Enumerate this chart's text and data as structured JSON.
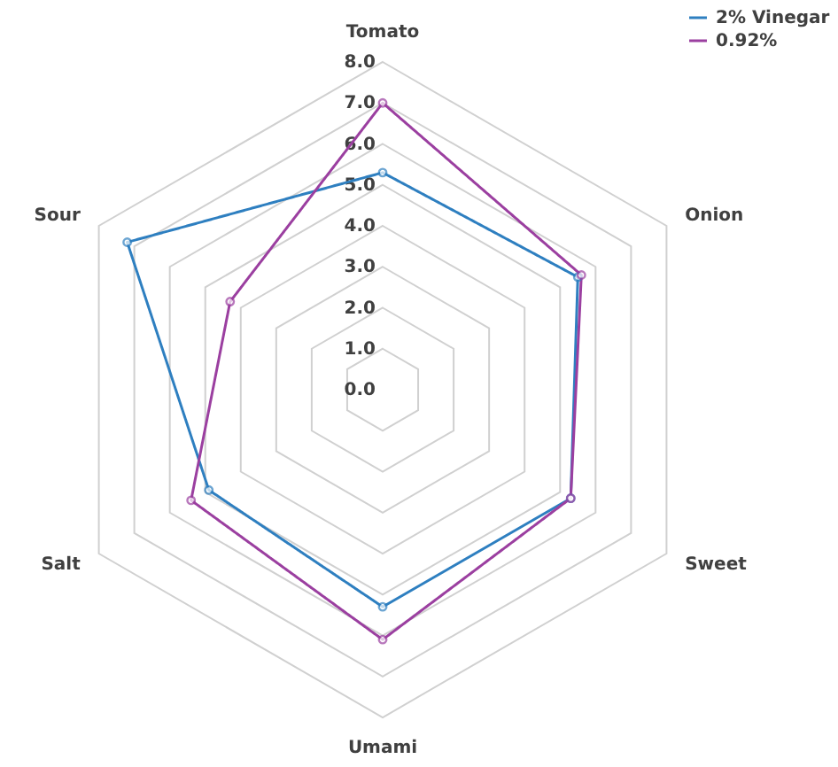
{
  "chart_data": {
    "type": "radar",
    "categories": [
      "Tomato",
      "Onion",
      "Sweet",
      "Umami",
      "Salt",
      "Sour"
    ],
    "series": [
      {
        "name": "2% Vinegar",
        "color": "#2e7fc0",
        "values": [
          5.3,
          5.5,
          5.3,
          5.3,
          4.9,
          7.2
        ]
      },
      {
        "name": "0.92%",
        "color": "#9b3fa0",
        "values": [
          7.0,
          5.6,
          5.3,
          6.1,
          5.4,
          4.3
        ]
      }
    ],
    "ylim": [
      0,
      8
    ],
    "yticks": [
      {
        "value": 0,
        "label": "0.0"
      },
      {
        "value": 1,
        "label": "1.0"
      },
      {
        "value": 2,
        "label": "2.0"
      },
      {
        "value": 3,
        "label": "3.0"
      },
      {
        "value": 4,
        "label": "4.0"
      },
      {
        "value": 5,
        "label": "5.0"
      },
      {
        "value": 6,
        "label": "6.0"
      },
      {
        "value": 7,
        "label": "7.0"
      },
      {
        "value": 8,
        "label": "8.0"
      }
    ],
    "grid": true,
    "legend": "top right",
    "marker": "circle",
    "line_style": "solid"
  }
}
